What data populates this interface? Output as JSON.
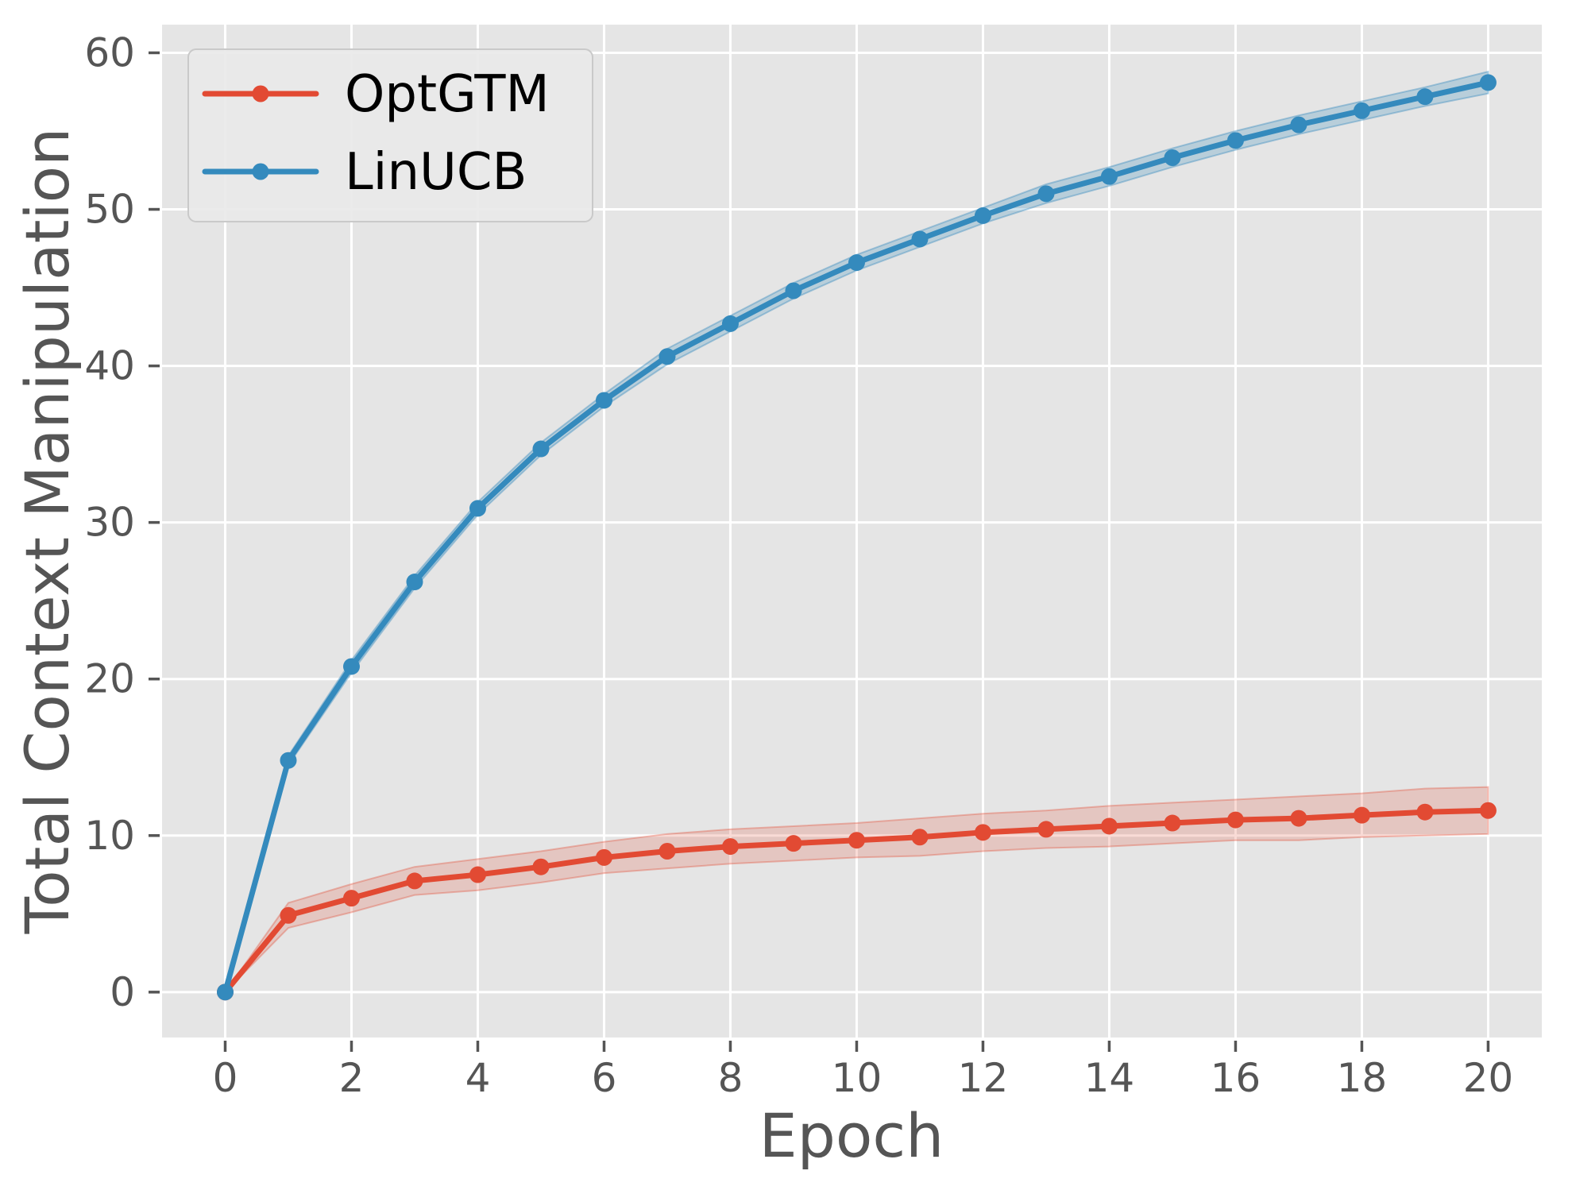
{
  "figure": {
    "xlabel": "Epoch",
    "ylabel": "Total Context Manipulation"
  },
  "chart_data": {
    "type": "line",
    "title": "",
    "xlabel": "Epoch",
    "ylabel": "Total Context Manipulation",
    "x": [
      0,
      1,
      2,
      3,
      4,
      5,
      6,
      7,
      8,
      9,
      10,
      11,
      12,
      13,
      14,
      15,
      16,
      17,
      18,
      19,
      20
    ],
    "series": [
      {
        "name": "OptGTM",
        "color": "#E24A33",
        "band_color": "rgba(226,74,51,0.20)",
        "band_edge_color": "rgba(226,74,51,0.35)",
        "values": [
          0,
          4.9,
          6.0,
          7.1,
          7.5,
          8.0,
          8.6,
          9.0,
          9.3,
          9.5,
          9.7,
          9.9,
          10.2,
          10.4,
          10.6,
          10.8,
          11.0,
          11.1,
          11.3,
          11.5,
          11.6
        ],
        "band_lower": [
          0,
          4.1,
          5.1,
          6.2,
          6.5,
          7.0,
          7.6,
          7.9,
          8.2,
          8.4,
          8.6,
          8.7,
          9.0,
          9.2,
          9.3,
          9.5,
          9.7,
          9.7,
          9.9,
          10.0,
          10.1
        ],
        "band_upper": [
          0,
          5.7,
          6.9,
          8.0,
          8.5,
          9.0,
          9.6,
          10.1,
          10.4,
          10.6,
          10.8,
          11.1,
          11.4,
          11.6,
          11.9,
          12.1,
          12.3,
          12.5,
          12.7,
          13.0,
          13.1
        ]
      },
      {
        "name": "LinUCB",
        "color": "#348ABD",
        "band_color": "rgba(52,138,189,0.25)",
        "band_edge_color": "rgba(52,138,189,0.40)",
        "values": [
          0,
          14.8,
          20.8,
          26.2,
          30.9,
          34.7,
          37.8,
          40.6,
          42.7,
          44.8,
          46.6,
          48.1,
          49.6,
          51.0,
          52.1,
          53.3,
          54.4,
          55.4,
          56.3,
          57.2,
          58.1
        ],
        "band_lower": [
          0,
          14.5,
          20.4,
          25.8,
          30.5,
          34.3,
          37.4,
          40.1,
          42.2,
          44.3,
          46.1,
          47.6,
          49.1,
          50.4,
          51.5,
          52.7,
          53.8,
          54.8,
          55.7,
          56.6,
          57.4
        ],
        "band_upper": [
          0,
          15.1,
          21.2,
          26.6,
          31.3,
          35.1,
          38.2,
          41.1,
          43.2,
          45.3,
          47.1,
          48.6,
          50.1,
          51.6,
          52.7,
          53.9,
          55.0,
          56.0,
          56.9,
          57.8,
          58.8
        ]
      }
    ],
    "x_ticks": [
      0,
      2,
      4,
      6,
      8,
      10,
      12,
      14,
      16,
      18,
      20
    ],
    "y_ticks": [
      0,
      10,
      20,
      30,
      40,
      50,
      60
    ],
    "xlim": [
      -1.0,
      20.85
    ],
    "ylim": [
      -2.9,
      61.8
    ],
    "grid": true,
    "legend_position": "upper left",
    "legend_labels": [
      "OptGTM",
      "LinUCB"
    ],
    "style": {
      "plot_bg": "#E5E5E5",
      "grid_color": "#FFFFFF",
      "tick_color": "#555555",
      "tick_label_color": "#555555",
      "axis_label_color": "#555555",
      "legend_bg": "#E9E9E9",
      "legend_border": "#C9C9C9",
      "legend_text_color": "#000000"
    }
  }
}
